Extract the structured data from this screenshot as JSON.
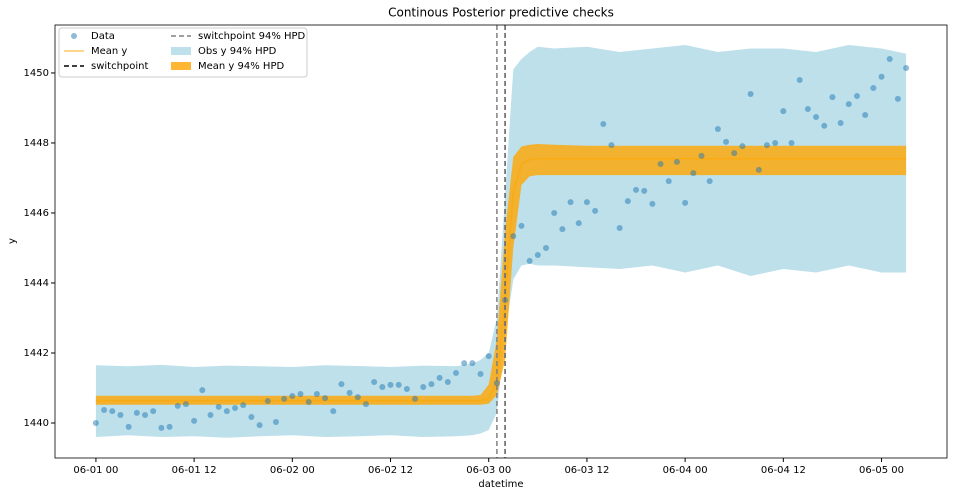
{
  "chart_data": {
    "type": "line",
    "title": "Continous Posterior predictive checks",
    "x_label": "datetime",
    "y_label": "y",
    "xlim": [
      "05-31 19",
      "06-05 08"
    ],
    "xticks": [
      "06-01 00",
      "06-01 12",
      "06-02 00",
      "06-02 12",
      "06-03 00",
      "06-03 12",
      "06-04 00",
      "06-04 12",
      "06-05 00"
    ],
    "ylim": [
      1439.0,
      1451.37
    ],
    "yticks": [
      1440,
      1442,
      1444,
      1446,
      1448,
      1450
    ],
    "grid": false,
    "legend": "upper left",
    "series": [
      {
        "name": "Data",
        "mark": "scatter",
        "color": "#1f77b4",
        "alpha": 0.5,
        "x": [
          "06-01 00",
          "06-01 01",
          "06-01 02",
          "06-01 03",
          "06-01 04",
          "06-01 05",
          "06-01 06",
          "06-01 07",
          "06-01 08",
          "06-01 09",
          "06-01 10",
          "06-01 11",
          "06-01 12",
          "06-01 13",
          "06-01 14",
          "06-01 15",
          "06-01 16",
          "06-01 17",
          "06-01 18",
          "06-01 19",
          "06-01 20",
          "06-01 21",
          "06-01 22",
          "06-01 23",
          "06-02 00",
          "06-02 01",
          "06-02 02",
          "06-02 03",
          "06-02 04",
          "06-02 05",
          "06-02 06",
          "06-02 07",
          "06-02 08",
          "06-02 09",
          "06-02 10",
          "06-02 11",
          "06-02 12",
          "06-02 13",
          "06-02 14",
          "06-02 15",
          "06-02 16",
          "06-02 17",
          "06-02 18",
          "06-02 19",
          "06-02 20",
          "06-02 21",
          "06-02 22",
          "06-02 23",
          "06-03 00",
          "06-03 01",
          "06-03 02",
          "06-03 03",
          "06-03 04",
          "06-03 05",
          "06-03 06",
          "06-03 07",
          "06-03 08",
          "06-03 09",
          "06-03 10",
          "06-03 11",
          "06-03 12",
          "06-03 13",
          "06-03 14",
          "06-03 15",
          "06-03 16",
          "06-03 17",
          "06-03 18",
          "06-03 19",
          "06-03 20",
          "06-03 21",
          "06-03 22",
          "06-03 23",
          "06-04 00",
          "06-04 01",
          "06-04 02",
          "06-04 03",
          "06-04 04",
          "06-04 05",
          "06-04 06",
          "06-04 07",
          "06-04 08",
          "06-04 09",
          "06-04 10",
          "06-04 11",
          "06-04 12",
          "06-04 13",
          "06-04 14",
          "06-04 15",
          "06-04 16",
          "06-04 17",
          "06-04 18",
          "06-04 19",
          "06-04 20",
          "06-04 21",
          "06-04 22",
          "06-04 23",
          "06-05 00",
          "06-05 01",
          "06-05 02",
          "06-05 03"
        ],
        "values": [
          1440.0,
          1440.37,
          1440.34,
          1440.23,
          1439.89,
          1440.29,
          1440.23,
          1440.34,
          1439.86,
          1439.89,
          1440.49,
          1440.54,
          1440.06,
          1440.94,
          1440.23,
          1440.46,
          1440.34,
          1440.43,
          1440.51,
          1440.17,
          1439.94,
          1440.63,
          1440.03,
          1440.69,
          1440.77,
          1440.83,
          1440.6,
          1440.83,
          1440.71,
          1440.34,
          1441.11,
          1440.86,
          1440.74,
          1440.54,
          1441.17,
          1441.03,
          1441.09,
          1441.09,
          1440.97,
          1440.69,
          1441.03,
          1441.11,
          1441.29,
          1441.17,
          1441.43,
          1441.71,
          1441.71,
          1441.4,
          1441.91,
          1441.14,
          1443.51,
          1445.34,
          1445.63,
          1444.63,
          1444.8,
          1445.0,
          1446.0,
          1445.54,
          1446.31,
          1445.71,
          1446.31,
          1446.06,
          1448.54,
          1447.94,
          1445.57,
          1446.34,
          1446.66,
          1446.63,
          1446.26,
          1447.4,
          1446.91,
          1447.46,
          1446.29,
          1447.14,
          1447.63,
          1446.91,
          1448.4,
          1448.03,
          1447.71,
          1447.91,
          1449.4,
          1447.23,
          1447.94,
          1448.0,
          1448.91,
          1448.0,
          1449.8,
          1448.97,
          1448.74,
          1448.49,
          1449.31,
          1448.57,
          1449.11,
          1449.34,
          1448.8,
          1449.57,
          1449.89,
          1450.4,
          1449.26,
          1450.14
        ]
      },
      {
        "name": "Mean y",
        "mark": "line",
        "color": "#ffa500",
        "alpha": 0.6,
        "x": [
          "06-01 00",
          "06-01 04",
          "06-01 08",
          "06-01 12",
          "06-01 16",
          "06-01 20",
          "06-02 00",
          "06-02 04",
          "06-02 08",
          "06-02 12",
          "06-02 16",
          "06-02 20",
          "06-02 22",
          "06-02 23",
          "06-03 00",
          "06-03 01",
          "06-03 02",
          "06-03 03",
          "06-03 04",
          "06-03 05",
          "06-03 06",
          "06-03 08",
          "06-03 12",
          "06-03 16",
          "06-03 20",
          "06-04 00",
          "06-04 04",
          "06-04 08",
          "06-04 12",
          "06-04 16",
          "06-04 20",
          "06-05 00",
          "06-05 03"
        ],
        "values": [
          1440.64,
          1440.64,
          1440.64,
          1440.64,
          1440.64,
          1440.64,
          1440.64,
          1440.64,
          1440.64,
          1440.64,
          1440.64,
          1440.64,
          1440.64,
          1440.64,
          1440.7,
          1441.2,
          1443.5,
          1446.6,
          1447.4,
          1447.52,
          1447.55,
          1447.55,
          1447.55,
          1447.55,
          1447.55,
          1447.55,
          1447.55,
          1447.55,
          1447.55,
          1447.55,
          1447.55,
          1447.55,
          1447.55
        ]
      },
      {
        "name": "switchpoint",
        "mark": "vline",
        "color": "#000000",
        "dash": "5,3",
        "x": [
          "06-03 02"
        ]
      },
      {
        "name": "switchpoint 94% HPD",
        "mark": "vline",
        "color": "#808080",
        "dash": "5,3",
        "x": [
          "06-03 01",
          "06-03 02"
        ]
      },
      {
        "name": "Obs y 94% HPD",
        "mark": "band",
        "color": "#add8e6",
        "alpha": 0.8,
        "x": [
          "06-01 00",
          "06-01 04",
          "06-01 08",
          "06-01 12",
          "06-01 16",
          "06-01 20",
          "06-02 00",
          "06-02 04",
          "06-02 08",
          "06-02 12",
          "06-02 16",
          "06-02 20",
          "06-02 22",
          "06-02 23",
          "06-03 00",
          "06-03 01",
          "06-03 02",
          "06-03 03",
          "06-03 04",
          "06-03 05",
          "06-03 06",
          "06-03 08",
          "06-03 12",
          "06-03 16",
          "06-03 20",
          "06-04 00",
          "06-04 04",
          "06-04 08",
          "06-04 12",
          "06-04 16",
          "06-04 20",
          "06-05 00",
          "06-05 03"
        ],
        "lower": [
          1439.6,
          1439.65,
          1439.6,
          1439.62,
          1439.58,
          1439.62,
          1439.65,
          1439.6,
          1439.62,
          1439.65,
          1439.6,
          1439.62,
          1439.65,
          1439.7,
          1439.8,
          1440.3,
          1442.5,
          1444.1,
          1444.5,
          1444.55,
          1444.5,
          1444.5,
          1444.45,
          1444.4,
          1444.5,
          1444.3,
          1444.5,
          1444.2,
          1444.4,
          1444.3,
          1444.5,
          1444.3,
          1444.3
        ],
        "upper": [
          1441.65,
          1441.62,
          1441.66,
          1441.6,
          1441.64,
          1441.62,
          1441.6,
          1441.65,
          1441.63,
          1441.6,
          1441.64,
          1441.62,
          1441.7,
          1441.8,
          1442.0,
          1443.0,
          1446.5,
          1450.1,
          1450.4,
          1450.6,
          1450.75,
          1450.7,
          1450.75,
          1450.6,
          1450.7,
          1450.8,
          1450.6,
          1450.7,
          1450.7,
          1450.6,
          1450.8,
          1450.7,
          1450.55
        ]
      },
      {
        "name": "Mean y 94% HPD",
        "mark": "band",
        "color": "#ffa500",
        "alpha": 0.8,
        "x": [
          "06-01 00",
          "06-01 04",
          "06-01 08",
          "06-01 12",
          "06-01 16",
          "06-01 20",
          "06-02 00",
          "06-02 04",
          "06-02 08",
          "06-02 12",
          "06-02 16",
          "06-02 20",
          "06-02 22",
          "06-02 23",
          "06-03 00",
          "06-03 01",
          "06-03 02",
          "06-03 03",
          "06-03 04",
          "06-03 05",
          "06-03 06",
          "06-03 08",
          "06-03 12",
          "06-03 16",
          "06-03 20",
          "06-04 00",
          "06-04 04",
          "06-04 08",
          "06-04 12",
          "06-04 16",
          "06-04 20",
          "06-05 00",
          "06-05 03"
        ],
        "lower": [
          1440.52,
          1440.52,
          1440.52,
          1440.52,
          1440.52,
          1440.52,
          1440.52,
          1440.52,
          1440.52,
          1440.52,
          1440.52,
          1440.52,
          1440.52,
          1440.52,
          1440.55,
          1440.8,
          1441.8,
          1445.0,
          1446.8,
          1447.05,
          1447.08,
          1447.08,
          1447.08,
          1447.08,
          1447.08,
          1447.08,
          1447.08,
          1447.08,
          1447.08,
          1447.08,
          1447.08,
          1447.08,
          1447.08
        ],
        "upper": [
          1440.78,
          1440.78,
          1440.78,
          1440.78,
          1440.78,
          1440.78,
          1440.78,
          1440.78,
          1440.78,
          1440.78,
          1440.78,
          1440.78,
          1440.78,
          1440.8,
          1441.1,
          1442.4,
          1445.5,
          1447.6,
          1447.9,
          1447.95,
          1447.97,
          1447.95,
          1447.92,
          1447.92,
          1447.92,
          1447.92,
          1447.92,
          1447.92,
          1447.92,
          1447.92,
          1447.92,
          1447.92,
          1447.92
        ]
      }
    ]
  }
}
